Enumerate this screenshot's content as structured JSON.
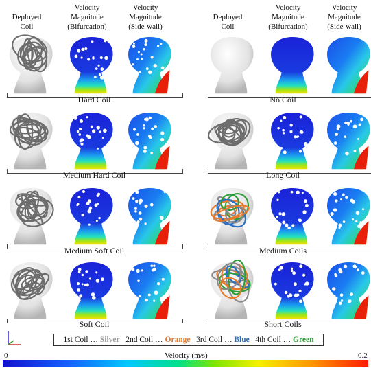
{
  "headers": {
    "deployed_coil": "Deployed\nCoil",
    "vel_bif": "Velocity\nMagnitude\n(Bifurcation)",
    "vel_side": "Velocity\nMagnitude\n(Side-wall)"
  },
  "labels": {
    "hard": "Hard Coil",
    "medium_hard": "Medium Hard Coil",
    "medium_soft": "Medium Soft Coil",
    "soft": "Soft Coil",
    "no_coil": "No Coil",
    "long": "Long  Coil",
    "medium_coils": "Medium Coils",
    "short_coils": "Short Coils"
  },
  "legend": {
    "c1": "1st Coil … ",
    "c1_color": "Silver",
    "c2": "2nd Coil … ",
    "c2_color": "Orange",
    "c3": "3rd Coil … ",
    "c3_color": "Blue",
    "c4": "4th Coil … ",
    "c4_color": "Green"
  },
  "colors": {
    "silver": "#9a9a9a",
    "orange": "#e87b2c",
    "blue": "#2a6fc0",
    "green": "#2e9e3a"
  },
  "colorbar": {
    "min": "0",
    "max": "0.2",
    "title": "Velocity (m/s)"
  }
}
